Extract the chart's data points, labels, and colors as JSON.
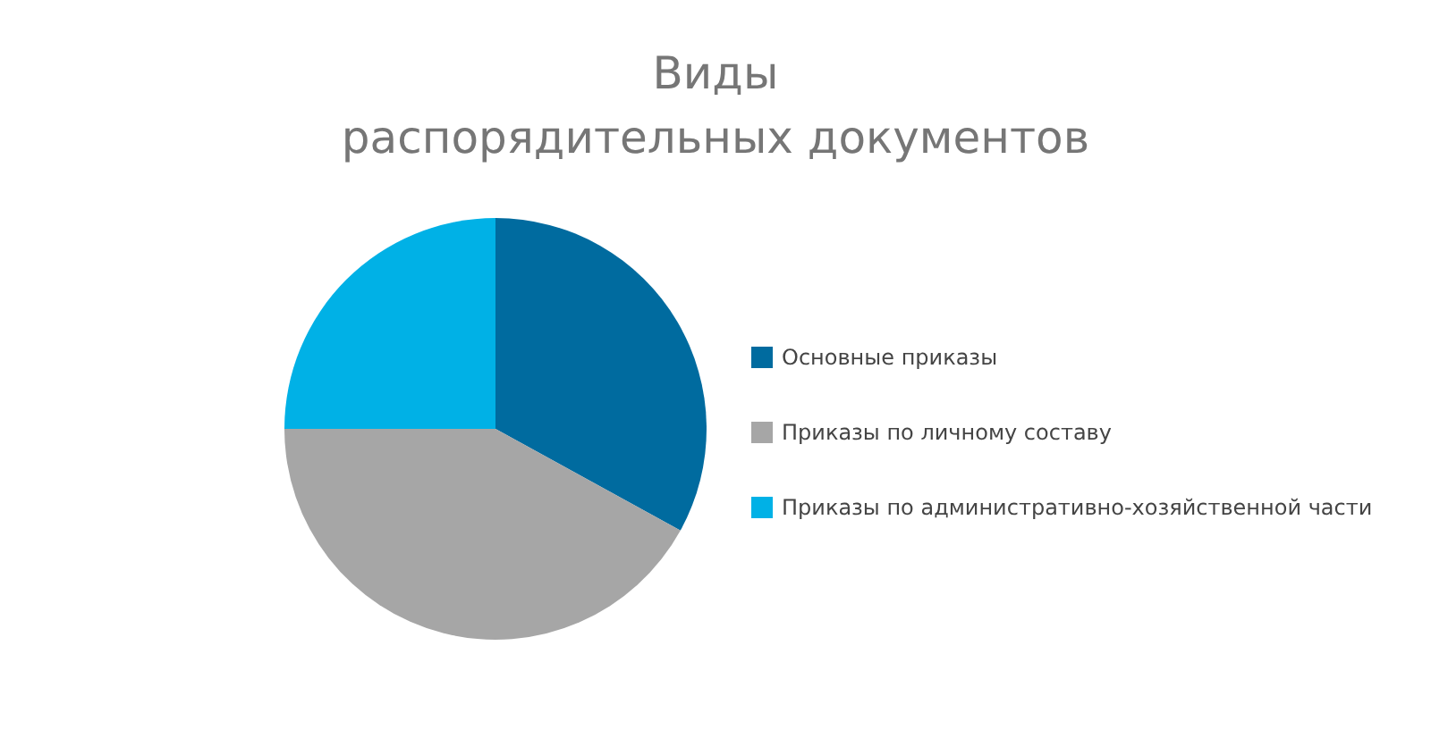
{
  "chart_data": {
    "type": "pie",
    "title": "Виды\nраспорядительных документов",
    "categories": [
      "Основные приказы",
      "Приказы по личному составу",
      "Приказы по административно-хозяйственной части"
    ],
    "values": [
      33,
      42,
      25
    ],
    "colors": [
      "#006b9f",
      "#a6a6a6",
      "#00b1e6"
    ],
    "legend": "right"
  }
}
